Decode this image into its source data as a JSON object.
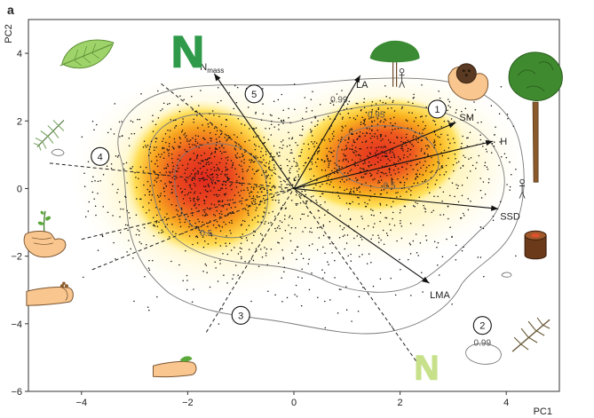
{
  "panel_label": "a",
  "chart_data": {
    "type": "scatter",
    "title": "",
    "xlabel": "PC1",
    "ylabel": "PC2",
    "xlim": [
      -5.0,
      5.0
    ],
    "ylim": [
      -6.0,
      5.0
    ],
    "x_ticks": [
      -4,
      -2,
      0,
      2,
      4
    ],
    "y_ticks": [
      -6,
      -4,
      -2,
      0,
      2,
      4
    ],
    "x_tick_labels": [
      "−4",
      "−2",
      "0",
      "2",
      "4"
    ],
    "y_tick_labels": [
      "−6",
      "−4",
      "−2",
      "0",
      "2",
      "4"
    ],
    "grid": false,
    "colors": {
      "density_low": "#fff7b0",
      "density_mid": "#ffd21f",
      "density_high": "#e0281e",
      "points": "#111111",
      "contour": "#777777",
      "arrow": "#111111"
    },
    "density_peaks": [
      {
        "x": -1.7,
        "y": 0.3
      },
      {
        "x": 1.6,
        "y": 1.0
      }
    ],
    "contour_labels": [
      {
        "text": "0.99",
        "x": 0.85,
        "y": 2.55
      },
      {
        "text": "0.95",
        "x": 1.55,
        "y": 2.1
      },
      {
        "text": "0.5",
        "x": 1.8,
        "y": 0.0
      },
      {
        "text": "0.5",
        "x": -1.65,
        "y": -1.4
      },
      {
        "text": "0.99",
        "x": 3.55,
        "y": -4.65
      }
    ],
    "trait_vectors": [
      {
        "label": "N",
        "subscript": "mass",
        "x": -1.5,
        "y": 3.4
      },
      {
        "label": "LA",
        "subscript": "",
        "x": 1.25,
        "y": 3.35
      },
      {
        "label": "SM",
        "subscript": "",
        "x": 3.05,
        "y": 1.95
      },
      {
        "label": "H",
        "subscript": "",
        "x": 3.75,
        "y": 1.4
      },
      {
        "label": "SSD",
        "subscript": "",
        "x": 3.85,
        "y": -0.6
      },
      {
        "label": "LMA",
        "subscript": "",
        "x": 2.55,
        "y": -2.8
      }
    ],
    "dashed_axes": [
      {
        "x1": -2.5,
        "y1": 3.1,
        "x2": 0,
        "y2": 0
      },
      {
        "x1": -4.6,
        "y1": 0.75,
        "x2": 0,
        "y2": 0
      },
      {
        "x1": -4.0,
        "y1": -1.5,
        "x2": 0,
        "y2": 0
      },
      {
        "x1": -3.8,
        "y1": -2.4,
        "x2": 0,
        "y2": 0
      },
      {
        "x1": -1.65,
        "y1": -4.25,
        "x2": 0,
        "y2": 0
      },
      {
        "x1": 2.3,
        "y1": -5.1,
        "x2": 0,
        "y2": 0
      }
    ],
    "markers": [
      {
        "text": "1",
        "x": 2.7,
        "y": 2.35
      },
      {
        "text": "2",
        "x": 3.55,
        "y": -4.05
      },
      {
        "text": "3",
        "x": -1.0,
        "y": -3.75
      },
      {
        "text": "4",
        "x": -3.65,
        "y": 0.95
      },
      {
        "text": "5",
        "x": -0.75,
        "y": 2.8
      }
    ],
    "icons": [
      {
        "name": "broad-leaf-icon",
        "x": -3.9,
        "y": 3.95
      },
      {
        "name": "conifer-twig-icon",
        "x": -4.6,
        "y": 1.6
      },
      {
        "name": "hand-holding-seedling-icon",
        "x": -4.7,
        "y": -1.4
      },
      {
        "name": "finger-with-seeds-icon",
        "x": -4.6,
        "y": -3.2
      },
      {
        "name": "finger-with-small-leaf-icon",
        "x": -2.25,
        "y": -5.35
      },
      {
        "name": "nitrogen-letter-green-icon",
        "x": -2.0,
        "y": 4.05
      },
      {
        "name": "nitrogen-letter-pale-icon",
        "x": 2.5,
        "y": -5.3
      },
      {
        "name": "tree-with-person-icon",
        "x": 1.9,
        "y": 3.8
      },
      {
        "name": "hand-holding-coconut-icon",
        "x": 3.25,
        "y": 3.3
      },
      {
        "name": "tall-tree-icon",
        "x": 4.55,
        "y": 2.5
      },
      {
        "name": "small-person-icon",
        "x": 4.3,
        "y": 0.0
      },
      {
        "name": "wood-section-icon",
        "x": 4.55,
        "y": -1.65
      },
      {
        "name": "needle-twig-icon",
        "x": 4.45,
        "y": -4.35
      }
    ]
  }
}
